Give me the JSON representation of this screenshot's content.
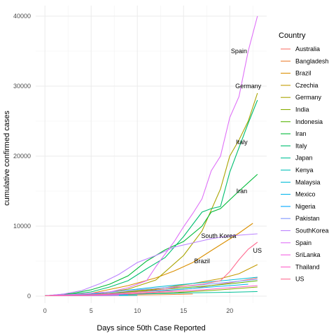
{
  "chart_data": {
    "type": "line",
    "title": "",
    "xlabel": "Days since 50th Case Reported",
    "ylabel": "cumulative confirmed cases",
    "xlim": [
      -1,
      24
    ],
    "ylim": [
      -1000,
      41500
    ],
    "x_ticks": [
      0,
      5,
      10,
      15,
      20
    ],
    "y_ticks": [
      0,
      10000,
      20000,
      30000,
      40000
    ],
    "grid": true,
    "legend": {
      "title": "Country",
      "position": "right"
    },
    "series": [
      {
        "name": "Australia",
        "color": "#F8766D",
        "points": [
          [
            0,
            50
          ],
          [
            4,
            150
          ],
          [
            8,
            300
          ],
          [
            12,
            600
          ],
          [
            16,
            1100
          ],
          [
            20,
            1900
          ],
          [
            23,
            2600
          ]
        ]
      },
      {
        "name": "Bangladesh",
        "color": "#EB8335",
        "points": [
          [
            0,
            50
          ],
          [
            6,
            100
          ],
          [
            12,
            200
          ],
          [
            16,
            300
          ]
        ]
      },
      {
        "name": "Brazil",
        "color": "#DA8F00",
        "points": [
          [
            0,
            50
          ],
          [
            5,
            400
          ],
          [
            9,
            1500
          ],
          [
            12,
            2600
          ],
          [
            14,
            3600
          ],
          [
            16,
            4800
          ],
          [
            18,
            6500
          ],
          [
            21,
            9000
          ],
          [
            22.5,
            10400
          ]
        ]
      },
      {
        "name": "Czechia",
        "color": "#C49A00",
        "points": [
          [
            0,
            50
          ],
          [
            6,
            300
          ],
          [
            12,
            1000
          ],
          [
            16,
            1800
          ],
          [
            19,
            2500
          ],
          [
            21,
            3200
          ],
          [
            23,
            4500
          ]
        ]
      },
      {
        "name": "Germany",
        "color": "#A9A400",
        "points": [
          [
            0,
            50
          ],
          [
            5,
            200
          ],
          [
            9,
            1000
          ],
          [
            12,
            2300
          ],
          [
            15,
            5800
          ],
          [
            17,
            9300
          ],
          [
            19,
            15300
          ],
          [
            20,
            20000
          ],
          [
            21,
            22300
          ],
          [
            22,
            25000
          ],
          [
            23,
            29000
          ]
        ]
      },
      {
        "name": "India",
        "color": "#86AC00",
        "points": [
          [
            0,
            50
          ],
          [
            8,
            200
          ],
          [
            14,
            500
          ],
          [
            19,
            900
          ],
          [
            23,
            1300
          ]
        ]
      },
      {
        "name": "Indonesia",
        "color": "#53B400",
        "points": [
          [
            0,
            50
          ],
          [
            6,
            300
          ],
          [
            10,
            700
          ],
          [
            14,
            1100
          ],
          [
            18,
            1500
          ],
          [
            21,
            1900
          ],
          [
            23,
            2200
          ]
        ]
      },
      {
        "name": "Iran",
        "color": "#00BA38",
        "points": [
          [
            0,
            50
          ],
          [
            3,
            400
          ],
          [
            5,
            900
          ],
          [
            7,
            1700
          ],
          [
            9,
            2900
          ],
          [
            11,
            5000
          ],
          [
            13,
            6600
          ],
          [
            15,
            7800
          ],
          [
            17,
            10000
          ],
          [
            18,
            12000
          ],
          [
            19,
            12500
          ],
          [
            21,
            15000
          ],
          [
            23,
            17400
          ]
        ]
      },
      {
        "name": "Italy",
        "color": "#00BE70",
        "points": [
          [
            0,
            50
          ],
          [
            3,
            300
          ],
          [
            5,
            600
          ],
          [
            7,
            1300
          ],
          [
            9,
            2200
          ],
          [
            11,
            3900
          ],
          [
            13,
            5500
          ],
          [
            15,
            8500
          ],
          [
            17,
            12000
          ],
          [
            18,
            12500
          ],
          [
            19,
            12800
          ],
          [
            20,
            17700
          ],
          [
            21,
            21200
          ],
          [
            22,
            24700
          ],
          [
            23,
            28000
          ]
        ]
      },
      {
        "name": "Japan",
        "color": "#00C097",
        "points": [
          [
            0,
            50
          ],
          [
            5,
            150
          ],
          [
            10,
            300
          ],
          [
            15,
            450
          ],
          [
            20,
            550
          ],
          [
            23,
            650
          ]
        ]
      },
      {
        "name": "Kenya",
        "color": "#00C0B8",
        "points": [
          [
            0,
            50
          ],
          [
            6,
            80
          ],
          [
            10,
            120
          ]
        ]
      },
      {
        "name": "Malaysia",
        "color": "#00BCD6",
        "points": [
          [
            0,
            50
          ],
          [
            5,
            300
          ],
          [
            8,
            700
          ],
          [
            12,
            1300
          ],
          [
            16,
            1800
          ],
          [
            20,
            2300
          ],
          [
            23,
            2700
          ]
        ]
      },
      {
        "name": "Mexico",
        "color": "#00B5EE",
        "points": [
          [
            0,
            50
          ],
          [
            6,
            300
          ],
          [
            10,
            600
          ],
          [
            14,
            900
          ],
          [
            18,
            1300
          ],
          [
            22,
            1700
          ]
        ]
      },
      {
        "name": "Nigeria",
        "color": "#00A9FF",
        "points": [
          [
            0,
            50
          ],
          [
            5,
            120
          ],
          [
            9,
            200
          ]
        ]
      },
      {
        "name": "Pakistan",
        "color": "#7F96FF",
        "points": [
          [
            0,
            50
          ],
          [
            4,
            300
          ],
          [
            8,
            700
          ],
          [
            12,
            1100
          ],
          [
            16,
            1500
          ],
          [
            20,
            2000
          ],
          [
            23,
            2400
          ]
        ]
      },
      {
        "name": "SouthKorea",
        "color": "#BB83FF",
        "points": [
          [
            0,
            50
          ],
          [
            2,
            300
          ],
          [
            4,
            800
          ],
          [
            6,
            1800
          ],
          [
            8,
            3100
          ],
          [
            10,
            4800
          ],
          [
            12,
            5800
          ],
          [
            14,
            7000
          ],
          [
            16,
            7600
          ],
          [
            18,
            8200
          ],
          [
            20,
            8600
          ],
          [
            23,
            8900
          ]
        ]
      },
      {
        "name": "Spain",
        "color": "#DF70F8",
        "points": [
          [
            0,
            50
          ],
          [
            4,
            300
          ],
          [
            7,
            600
          ],
          [
            9,
            1200
          ],
          [
            11,
            2200
          ],
          [
            12,
            4200
          ],
          [
            13,
            6000
          ],
          [
            14,
            7800
          ],
          [
            15,
            9900
          ],
          [
            16,
            11800
          ],
          [
            17,
            13900
          ],
          [
            18,
            17900
          ],
          [
            19,
            20000
          ],
          [
            20,
            25500
          ],
          [
            21,
            28500
          ],
          [
            22,
            35000
          ],
          [
            23,
            40000
          ]
        ]
      },
      {
        "name": "SriLanka",
        "color": "#F564E3",
        "points": [
          [
            0,
            50
          ],
          [
            4,
            70
          ],
          [
            8,
            100
          ]
        ]
      },
      {
        "name": "Thailand",
        "color": "#FF61C9",
        "points": [
          [
            0,
            50
          ],
          [
            5,
            150
          ],
          [
            9,
            300
          ],
          [
            13,
            600
          ],
          [
            17,
            900
          ],
          [
            20,
            1200
          ],
          [
            23,
            1500
          ]
        ]
      },
      {
        "name": "US",
        "color": "#FF6C91",
        "points": [
          [
            0,
            50
          ],
          [
            4,
            150
          ],
          [
            8,
            400
          ],
          [
            11,
            700
          ],
          [
            13,
            1000
          ],
          [
            15,
            1400
          ],
          [
            17,
            1700
          ],
          [
            19,
            2200
          ],
          [
            20,
            3500
          ],
          [
            21,
            5200
          ],
          [
            22,
            6700
          ],
          [
            23,
            7700
          ]
        ]
      }
    ],
    "annotations": [
      {
        "text": "Spain",
        "x": 21,
        "y": 35000
      },
      {
        "text": "Germany",
        "x": 22,
        "y": 30000
      },
      {
        "text": "Italy",
        "x": 21.3,
        "y": 22000
      },
      {
        "text": "Iran",
        "x": 21.3,
        "y": 15000
      },
      {
        "text": "South Korea",
        "x": 18.8,
        "y": 8600
      },
      {
        "text": "US",
        "x": 23,
        "y": 6500
      },
      {
        "text": "Brazil",
        "x": 17,
        "y": 5000
      }
    ]
  }
}
